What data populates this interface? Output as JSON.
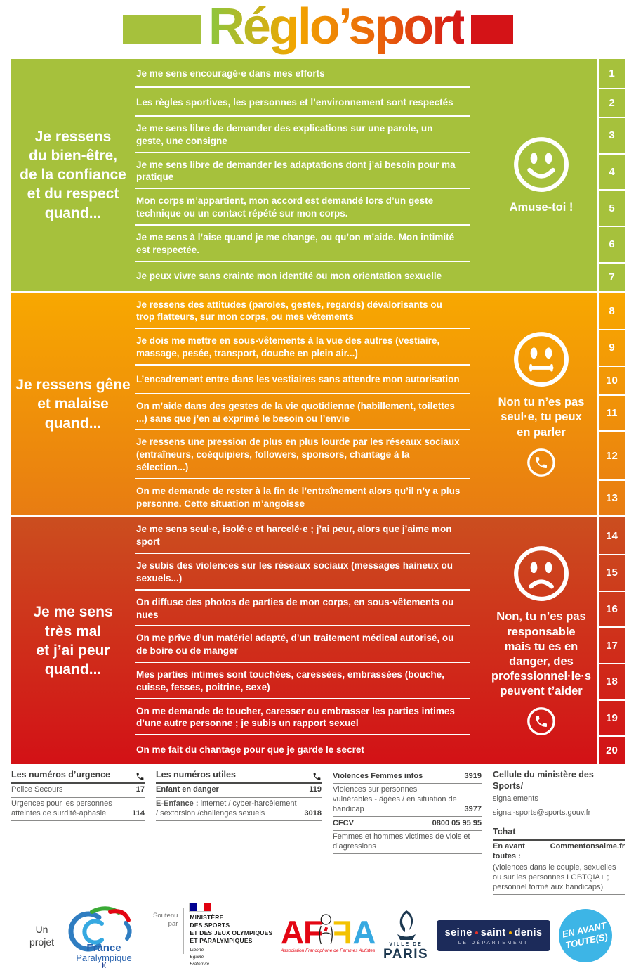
{
  "title": "Réglo’sport",
  "sections": [
    {
      "id": "green",
      "bg_top": "#a6c13c",
      "bg_bottom": "#a6c13c",
      "label": "Je ressens\ndu bien-être,\nde la confiance\net du respect\nquand...",
      "status": {
        "face": "happy",
        "message": "Amuse-toi !",
        "phone": false
      },
      "items": [
        {
          "num": "1",
          "text": "Je me sens encouragé·e dans mes efforts"
        },
        {
          "num": "2",
          "text": "Les règles sportives, les personnes et l’environnement sont respectés"
        },
        {
          "num": "3",
          "text": "Je me sens libre de demander des explications sur une parole, un geste, une consigne"
        },
        {
          "num": "4",
          "text": "Je me sens libre de demander les adaptations dont j’ai besoin pour ma pratique"
        },
        {
          "num": "5",
          "text": "Mon corps m’appartient, mon accord est demandé lors d’un geste technique ou un contact répété sur mon corps."
        },
        {
          "num": "6",
          "text": "Je me sens à l’aise quand je me change, ou qu’on m’aide. Mon intimité est respectée."
        },
        {
          "num": "7",
          "text": "Je peux vivre sans crainte mon identité ou mon orientation sexuelle"
        }
      ]
    },
    {
      "id": "orange",
      "bg_top": "#f8a800",
      "bg_bottom": "#e87c12",
      "label": "Je ressens gêne\net malaise\nquand...",
      "status": {
        "face": "neutral",
        "message": "Non tu n’es pas\nseul·e, tu peux\nen parler",
        "phone": true
      },
      "items": [
        {
          "num": "8",
          "text": "Je ressens des attitudes (paroles, gestes, regards) dévalorisants ou trop flatteurs, sur mon corps, ou mes vêtements"
        },
        {
          "num": "9",
          "text": "Je dois me mettre en sous-vêtements à la vue des autres (vestiaire, massage, pesée, transport, douche en plein air...)"
        },
        {
          "num": "10",
          "text": "L’encadrement entre dans les vestiaires sans attendre mon autorisation"
        },
        {
          "num": "11",
          "text": "On m’aide dans des gestes de la vie quotidienne (habillement, toilettes ...) sans que j’en ai exprimé le besoin ou l’envie"
        },
        {
          "num": "12",
          "text": "Je ressens une pression de plus en plus lourde par les réseaux sociaux (entraîneurs, coéquipiers, followers, sponsors, chantage à la sélection...)"
        },
        {
          "num": "13",
          "text": "On me demande de rester à la fin de l’entraînement alors qu’il n’y a plus personne. Cette situation m’angoisse"
        }
      ]
    },
    {
      "id": "red",
      "bg_top": "#cb4e1f",
      "bg_bottom": "#d31116",
      "label": "Je me sens\ntrès mal\net j’ai peur\nquand...",
      "status": {
        "face": "sad",
        "message": "Non, tu n’es pas\nresponsable\nmais tu es en\ndanger, des\nprofessionnel·le·s\npeuvent t’aider",
        "phone": true
      },
      "items": [
        {
          "num": "14",
          "text": "Je me sens seul·e, isolé·e et harcelé·e ; j’ai peur, alors que j’aime mon sport"
        },
        {
          "num": "15",
          "text": "Je subis des violences sur les réseaux sociaux (messages haineux ou sexuels...)"
        },
        {
          "num": "16",
          "text": "On diffuse des photos de parties de mon corps, en sous-vêtements ou nues"
        },
        {
          "num": "17",
          "text": "On me prive d’un matériel adapté, d’un traitement médical autorisé, ou de boire ou de manger"
        },
        {
          "num": "18",
          "text": "Mes parties intimes sont touchées, caressées, embrassées (bouche, cuisse, fesses, poitrine, sexe)"
        },
        {
          "num": "19",
          "text": "On me demande de toucher, caresser ou embrasser les parties intimes d’une autre personne ; je subis un rapport sexuel"
        },
        {
          "num": "20",
          "text": "On me fait du chantage pour que je garde le secret"
        }
      ]
    }
  ],
  "footer": {
    "columns": [
      {
        "header": "Les numéros d’urgence",
        "items": [
          {
            "label": "Police Secours",
            "value": "17"
          },
          {
            "label": "Urgences pour les personnes atteintes de surdité-aphasie",
            "value": "114"
          }
        ]
      },
      {
        "header": "Les numéros utiles",
        "items": [
          {
            "label": "Enfant en danger",
            "value": "119",
            "bold": true
          },
          {
            "lead": "E-Enfance :",
            "label": " internet / cyber-harcèlement / sextorsion /challenges sexuels",
            "value": "3018"
          }
        ]
      },
      {
        "items": [
          {
            "label": "Violences Femmes infos",
            "value": "3919",
            "bold": true
          },
          {
            "label": "Violences sur personnes vulnérables - âgées / en situation de handicap",
            "value": "3977"
          },
          {
            "label": "CFCV",
            "value": "0800 05 95 95",
            "bold": true
          },
          {
            "label": "Femmes et hommes victimes de viols et d’agressions",
            "value": ""
          }
        ]
      }
    ],
    "cellule": {
      "title": "Cellule du ministère des Sports/",
      "subtitle": "signalements",
      "email": "signal-sports@sports.gouv.fr",
      "tchat_label": "Tchat",
      "tchat_name": "En avant toutes :",
      "tchat_site": "Commentonsaime.fr",
      "tchat_note": "(violences dans le couple, sexuelles ou sur les personnes LGBTQIA+ ; personnel formé aux handicaps)"
    }
  },
  "logos": {
    "un_projet": "Un\nprojet",
    "fp_name1": "France",
    "fp_name2": "Paralympique",
    "soutenu": "Soutenu\npar",
    "ministere_lines": "MINISTÈRE\nDES SPORTS\nET DES JEUX OLYMPIQUES\nET PARALYMPIQUES",
    "motto": "Liberté\nÉgalité\nFraternité",
    "affa": {
      "l1": "A",
      "l2": "F",
      "l3": "F",
      "l4": "A",
      "caption": "Association Francophone de Femmes Autistes"
    },
    "paris": {
      "sub": "VILLE DE",
      "name": "PARIS"
    },
    "ssd": {
      "w1": "seine",
      "w2": "saint",
      "w3": "denis",
      "sub": "LE DÉPARTEMENT"
    },
    "eat": {
      "line1": "EN AVANT",
      "line2": "TOUTE(S)"
    }
  },
  "colors": {
    "green": "#a6c13c",
    "orange_top": "#f8a800",
    "orange_bottom": "#e87c12",
    "red_top": "#cb4e1f",
    "red_bottom": "#d31116",
    "title_red": "#d41317"
  }
}
